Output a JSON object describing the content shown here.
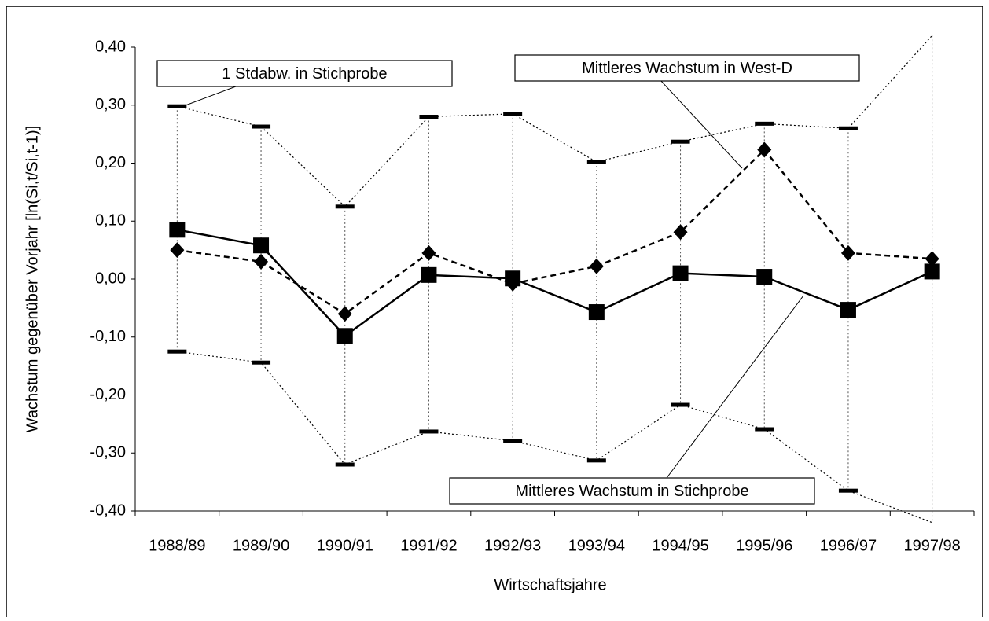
{
  "chart_data": {
    "type": "line",
    "x_label": "Wirtschaftsjahre",
    "y_label": "Wachstum gegenüber Vorjahr [ln(Si,t/Si,t-1)]",
    "categories": [
      "1988/89",
      "1989/90",
      "1990/91",
      "1991/92",
      "1992/93",
      "1993/94",
      "1994/95",
      "1995/96",
      "1996/97",
      "1997/98"
    ],
    "ylim": [
      -0.4,
      0.4
    ],
    "yticks": [
      {
        "value": 0.4,
        "label": "0,40"
      },
      {
        "value": 0.3,
        "label": "0,30"
      },
      {
        "value": 0.2,
        "label": "0,20"
      },
      {
        "value": 0.1,
        "label": "0,10"
      },
      {
        "value": 0,
        "label": "0,00"
      },
      {
        "value": -0.1,
        "label": "-0,10"
      },
      {
        "value": -0.2,
        "label": "-0,20"
      },
      {
        "value": -0.3,
        "label": "-0,30"
      },
      {
        "value": -0.4,
        "label": "-0,40"
      }
    ],
    "series": [
      {
        "name": "Mittleres Wachstum in Stichprobe",
        "color": "#000000",
        "marker": "square",
        "dash": "solid",
        "values": [
          0.085,
          0.058,
          -0.098,
          0.007,
          0.001,
          -0.057,
          0.01,
          0.004,
          -0.053,
          0.013
        ]
      },
      {
        "name": "Mittleres Wachstum in West-D",
        "color": "#000000",
        "marker": "diamond",
        "dash": "dashed",
        "values": [
          0.05,
          0.03,
          -0.06,
          0.045,
          -0.008,
          0.022,
          0.081,
          0.223,
          0.045,
          0.035
        ]
      }
    ],
    "band": {
      "name": "1 Stdabw. in Stichprobe",
      "color": "#000000",
      "upper": [
        0.298,
        0.263,
        0.125,
        0.28,
        0.285,
        0.202,
        0.237,
        0.268,
        0.26,
        0.42
      ],
      "lower": [
        -0.125,
        -0.144,
        -0.32,
        -0.263,
        -0.279,
        -0.313,
        -0.217,
        -0.259,
        -0.365,
        -0.42
      ]
    }
  }
}
